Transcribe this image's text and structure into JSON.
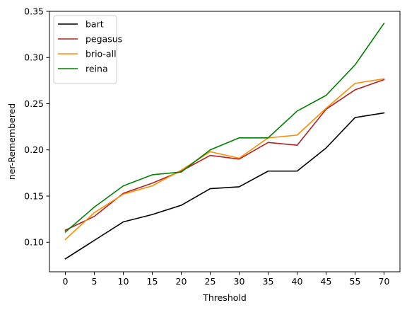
{
  "chart_data": {
    "type": "line",
    "categories": [
      "0",
      "5",
      "10",
      "15",
      "20",
      "25",
      "30",
      "35",
      "40",
      "45",
      "55",
      "70"
    ],
    "xlabel": "Threshold",
    "ylabel": "ner-Remembered",
    "ylim": [
      0.068,
      0.35
    ],
    "yticks": [
      0.1,
      0.15,
      0.2,
      0.25,
      0.3,
      0.35
    ],
    "ytick_labels": [
      "0.10",
      "0.15",
      "0.20",
      "0.25",
      "0.30",
      "0.35"
    ],
    "grid": false,
    "legend_position": "top-left",
    "series": [
      {
        "name": "bart",
        "color": "#000000",
        "values": [
          0.082,
          0.102,
          0.122,
          0.13,
          0.14,
          0.158,
          0.16,
          0.177,
          0.177,
          0.202,
          0.235,
          0.24
        ]
      },
      {
        "name": "pegasus",
        "color": "#b22222",
        "values": [
          0.113,
          0.128,
          0.153,
          0.164,
          0.177,
          0.194,
          0.19,
          0.208,
          0.205,
          0.244,
          0.265,
          0.276
        ]
      },
      {
        "name": "brio-all",
        "color": "#ff8c00",
        "values": [
          0.103,
          0.132,
          0.152,
          0.161,
          0.178,
          0.198,
          0.191,
          0.213,
          0.216,
          0.245,
          0.272,
          0.277
        ]
      },
      {
        "name": "reina",
        "color": "#008000",
        "values": [
          0.111,
          0.138,
          0.161,
          0.173,
          0.176,
          0.2,
          0.213,
          0.213,
          0.242,
          0.259,
          0.292,
          0.337
        ]
      }
    ]
  }
}
